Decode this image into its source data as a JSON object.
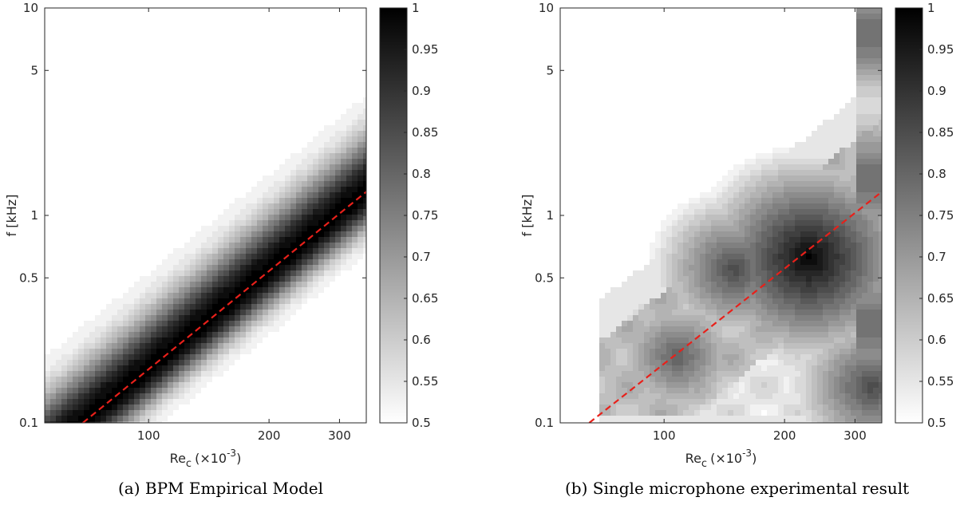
{
  "chart_data": [
    {
      "type": "heatmap",
      "caption": "(a) BPM Empirical Model",
      "xlabel_main": "Re",
      "xlabel_sub": "c",
      "xlabel_scale": "(×10",
      "xlabel_exp": "-3",
      "xlabel_close": ")",
      "ylabel": "f [kHz]",
      "x_scale": "log",
      "y_scale": "log",
      "xlim": [
        55,
        350
      ],
      "ylim": [
        0.1,
        10
      ],
      "x_ticks": [
        100,
        200,
        300
      ],
      "x_tick_labels": [
        "100",
        "200",
        "300"
      ],
      "y_ticks": [
        0.1,
        0.5,
        1,
        5,
        10
      ],
      "y_tick_labels": [
        "0.1",
        "0.5",
        "1",
        "5",
        "10"
      ],
      "colorbar": {
        "min": 0.5,
        "max": 1,
        "ticks": [
          0.5,
          0.55,
          0.6,
          0.65,
          0.7,
          0.75,
          0.8,
          0.85,
          0.9,
          0.95,
          1
        ],
        "tick_labels": [
          "0.5",
          "0.55",
          "0.6",
          "0.65",
          "0.7",
          "0.75",
          "0.8",
          "0.85",
          "0.9",
          "0.95",
          "1"
        ],
        "colormap": "white-to-black"
      },
      "ridge_line": {
        "style": "dashed",
        "color": "#e8201a",
        "x": [
          68.5,
          350
        ],
        "f": [
          0.1,
          1.3
        ]
      },
      "field": {
        "ridge_width": 0.19,
        "ridge_sharpness": 2.2,
        "background": 0.5,
        "upper_floor": 0.5,
        "lobe": {
          "x": 310,
          "f": 0.23,
          "strength": -0.06
        }
      }
    },
    {
      "type": "heatmap",
      "caption": "(b) Single microphone experimental result",
      "xlabel_main": "Re",
      "xlabel_sub": "c",
      "xlabel_scale": "(×10",
      "xlabel_exp": "-3",
      "xlabel_close": ")",
      "ylabel": "f [kHz]",
      "x_scale": "log",
      "y_scale": "log",
      "xlim": [
        55,
        350
      ],
      "ylim": [
        0.1,
        10
      ],
      "x_ticks": [
        100,
        200,
        300
      ],
      "x_tick_labels": [
        "100",
        "200",
        "300"
      ],
      "y_ticks": [
        0.1,
        0.5,
        1,
        5,
        10
      ],
      "y_tick_labels": [
        "0.1",
        "0.5",
        "1",
        "5",
        "10"
      ],
      "colorbar": {
        "min": 0.5,
        "max": 1,
        "ticks": [
          0.5,
          0.55,
          0.6,
          0.65,
          0.7,
          0.75,
          0.8,
          0.85,
          0.9,
          0.95,
          1
        ],
        "tick_labels": [
          "0.5",
          "0.55",
          "0.6",
          "0.65",
          "0.7",
          "0.75",
          "0.8",
          "0.85",
          "0.9",
          "0.95",
          "1"
        ],
        "colormap": "white-to-black"
      },
      "ridge_line": {
        "style": "dashed",
        "color": "#e8201a",
        "x": [
          65,
          350
        ],
        "f": [
          0.1,
          1.3
        ]
      },
      "field": {
        "hot_spots": [
          {
            "x": 230,
            "f": 0.62,
            "value": 1.0
          },
          {
            "x": 150,
            "f": 0.55,
            "value": 0.86
          },
          {
            "x": 108,
            "f": 0.21,
            "value": 0.82
          },
          {
            "x": 330,
            "f": 0.15,
            "value": 0.86
          },
          {
            "x": 300,
            "f": 0.9,
            "value": 0.78
          }
        ]
      }
    }
  ]
}
